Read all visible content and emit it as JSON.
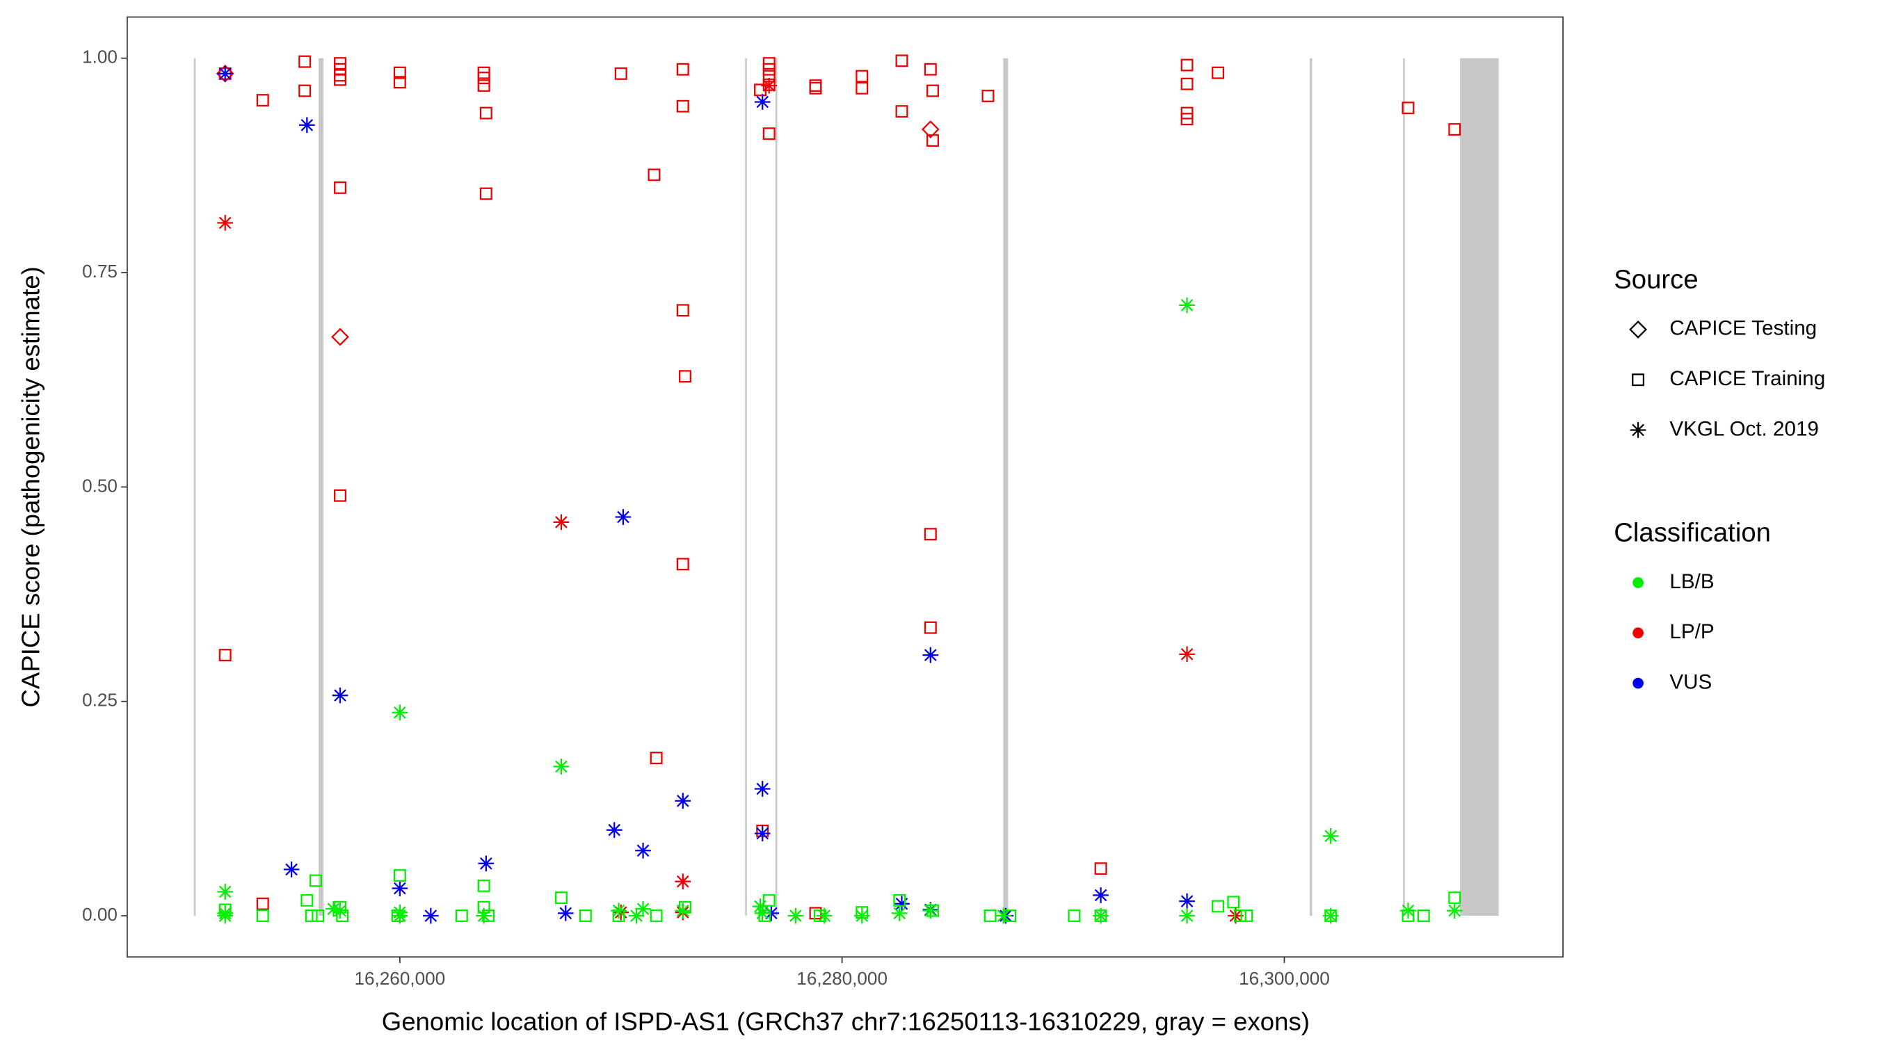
{
  "chart_data": {
    "type": "scatter",
    "xlabel": "Genomic location of ISPD-AS1 (GRCh37 chr7:16250113-16310229, gray = exons)",
    "ylabel": "CAPICE score (pathogenicity estimate)",
    "xlim": [
      16247671,
      16312603
    ],
    "ylim": [
      -0.048,
      1.048
    ],
    "xticks": [
      {
        "value": 16260000,
        "label": "16,260,000"
      },
      {
        "value": 16280000,
        "label": "16,280,000"
      },
      {
        "value": 16300000,
        "label": "16,300,000"
      }
    ],
    "yticks": [
      {
        "value": 0,
        "label": "0.00"
      },
      {
        "value": 0.25,
        "label": "0.25"
      },
      {
        "value": 0.5,
        "label": "0.50"
      },
      {
        "value": 0.75,
        "label": "0.75"
      },
      {
        "value": 1,
        "label": "1.00"
      }
    ],
    "exon_color": "#c8c8c8",
    "exons": [
      [
        16250685,
        16250760
      ],
      [
        16256329,
        16256548
      ],
      [
        16275616,
        16275680
      ],
      [
        16276986,
        16277050
      ],
      [
        16287288,
        16287507
      ],
      [
        16301150,
        16301260
      ],
      [
        16305370,
        16305430
      ],
      [
        16307945,
        16309698
      ]
    ],
    "legend_source": {
      "title": "Source",
      "items": [
        {
          "name": "CAPICE Testing",
          "shape": "diamond"
        },
        {
          "name": "CAPICE Training",
          "shape": "square"
        },
        {
          "name": "VKGL Oct. 2019",
          "shape": "asterisk"
        }
      ]
    },
    "legend_classification": {
      "title": "Classification",
      "items": [
        {
          "name": "LB/B",
          "color": "#00ee00"
        },
        {
          "name": "LP/P",
          "color": "#ee0000"
        },
        {
          "name": "VUS",
          "color": "#0000ee"
        }
      ]
    },
    "series": [
      {
        "source": "CAPICE Training",
        "classification": "LP/P",
        "x": [
          16252100,
          16252100,
          16253800,
          16253800,
          16255700,
          16255700,
          16257300,
          16257300,
          16257300,
          16257300,
          16257300,
          16257300,
          16260000,
          16260000,
          16263800,
          16263800,
          16263800,
          16263900,
          16263900,
          16270000,
          16271500,
          16271600,
          16272800,
          16272800,
          16272800,
          16272900,
          16272800,
          16276300,
          16276700,
          16276700,
          16276700,
          16276700,
          16276700,
          16276400,
          16278800,
          16278800,
          16278800,
          16280900,
          16280900,
          16282700,
          16282700,
          16284000,
          16284100,
          16284100,
          16284000,
          16284000,
          16286600,
          16291700,
          16295600,
          16295600,
          16295600,
          16295600,
          16297000,
          16305600,
          16307700
        ],
        "y": [
          0.982,
          0.304,
          0.951,
          0.014,
          0.996,
          0.962,
          0.994,
          0.987,
          0.98,
          0.975,
          0.849,
          0.49,
          0.983,
          0.972,
          0.983,
          0.977,
          0.968,
          0.936,
          0.842,
          0.982,
          0.864,
          0.184,
          0.987,
          0.944,
          0.706,
          0.629,
          0.41,
          0.963,
          0.994,
          0.987,
          0.979,
          0.969,
          0.912,
          0.099,
          0.968,
          0.965,
          0.003,
          0.979,
          0.965,
          0.997,
          0.938,
          0.987,
          0.962,
          0.904,
          0.445,
          0.336,
          0.956,
          0.055,
          0.992,
          0.97,
          0.936,
          0.929,
          0.983,
          0.942,
          0.917
        ]
      },
      {
        "source": "CAPICE Testing",
        "classification": "LP/P",
        "x": [
          16252100,
          16257300,
          16284000
        ],
        "y": [
          0.982,
          0.675,
          0.917
        ]
      },
      {
        "source": "VKGL Oct. 2019",
        "classification": "LP/P",
        "x": [
          16252100,
          16267300,
          16270000,
          16272800,
          16272800,
          16276700,
          16295600,
          16297800
        ],
        "y": [
          0.808,
          0.459,
          0.004,
          0.04,
          0.004,
          0.968,
          0.305,
          0
        ]
      },
      {
        "source": "VKGL Oct. 2019",
        "classification": "VUS",
        "x": [
          16252100,
          16255800,
          16257300,
          16255100,
          16260000,
          16261400,
          16263900,
          16267500,
          16269700,
          16270100,
          16271000,
          16272800,
          16276400,
          16276400,
          16276400,
          16276800,
          16282700,
          16284000,
          16284000,
          16287400,
          16291700,
          16295600
        ],
        "y": [
          0.982,
          0.922,
          0.257,
          0.054,
          0.032,
          0,
          0.061,
          0.003,
          0.1,
          0.465,
          0.076,
          0.134,
          0.949,
          0.148,
          0.096,
          0.003,
          0.014,
          0.007,
          0.304,
          0,
          0.024,
          0.017
        ]
      },
      {
        "source": "VKGL Oct. 2019",
        "classification": "LB/B",
        "x": [
          16252100,
          16252100,
          16252100,
          16257300,
          16257000,
          16260000,
          16260000,
          16260000,
          16263800,
          16267300,
          16269900,
          16271000,
          16270700,
          16272800,
          16276400,
          16276300,
          16277900,
          16279200,
          16280900,
          16282600,
          16284000,
          16287300,
          16291700,
          16295600,
          16295600,
          16302100,
          16302100,
          16305600,
          16307700
        ],
        "y": [
          0.028,
          0.003,
          0,
          0.006,
          0.008,
          0.237,
          0.004,
          0,
          0,
          0.174,
          0.006,
          0.008,
          0,
          0.006,
          0.003,
          0.011,
          0,
          0,
          0,
          0.003,
          0.006,
          0,
          0,
          0.712,
          0,
          0.093,
          0,
          0.006,
          0.006
        ]
      },
      {
        "source": "CAPICE Training",
        "classification": "LB/B",
        "x": [
          16252100,
          16253800,
          16255800,
          16256200,
          16256000,
          16256300,
          16257300,
          16257400,
          16260000,
          16259900,
          16262800,
          16263800,
          16263800,
          16264000,
          16267300,
          16268400,
          16269900,
          16271600,
          16272900,
          16276700,
          16276500,
          16279000,
          16280900,
          16282600,
          16284100,
          16286700,
          16287600,
          16290500,
          16291700,
          16297000,
          16297700,
          16298000,
          16298300,
          16302100,
          16305600,
          16306300,
          16307700
        ],
        "y": [
          0.007,
          0,
          0.018,
          0.041,
          0,
          0,
          0.01,
          0,
          0.047,
          0,
          0,
          0.035,
          0.01,
          0,
          0.021,
          0,
          0,
          0,
          0.01,
          0.018,
          0,
          0,
          0.004,
          0.018,
          0.006,
          0,
          0,
          0,
          0,
          0.011,
          0.016,
          0,
          0,
          0,
          0,
          0,
          0.021
        ]
      }
    ]
  }
}
